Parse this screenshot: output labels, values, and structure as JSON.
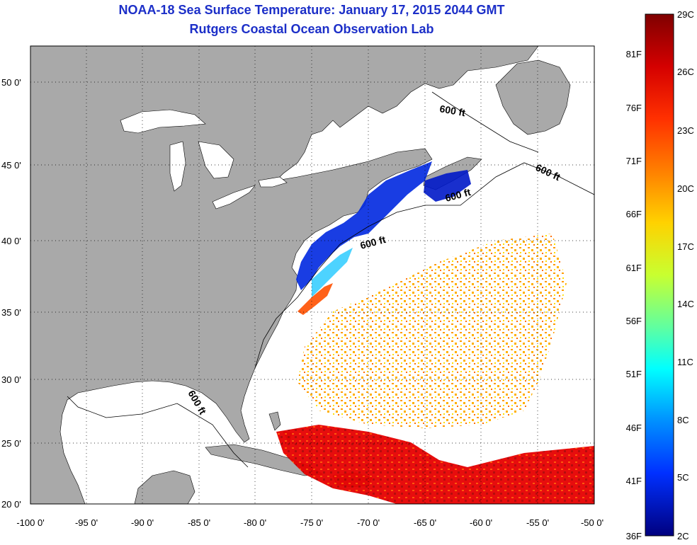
{
  "title": "NOAA-18 Sea Surface Temperature:  January 17, 2015 2044 GMT",
  "subtitle": "Rutgers Coastal Ocean Observation Lab",
  "lat_labels": [
    "50 0'",
    "45 0'",
    "40 0'",
    "35 0'",
    "30 0'",
    "25 0'",
    "20 0'"
  ],
  "lon_labels": [
    "-100 0'",
    "-95 0'",
    "-90 0'",
    "-85 0'",
    "-80 0'",
    "-75 0'",
    "-70 0'",
    "-65 0'",
    "-60 0'",
    "-55 0'",
    "-50 0'"
  ],
  "contour_label": "600 ft",
  "colorbar": {
    "fahrenheit": [
      "81F",
      "76F",
      "71F",
      "66F",
      "61F",
      "56F",
      "51F",
      "46F",
      "41F",
      "36F"
    ],
    "celsius": [
      "29C",
      "26C",
      "23C",
      "20C",
      "17C",
      "14C",
      "11C",
      "8C",
      "5C",
      "2C"
    ],
    "colors": [
      "#7f0000",
      "#d40000",
      "#ff3000",
      "#ff7f00",
      "#ffc800",
      "#e6ff00",
      "#9cff50",
      "#40ffbf",
      "#00e0ff",
      "#0090ff",
      "#0040ff",
      "#0000d0",
      "#00007f"
    ]
  },
  "colors": {
    "land": "#a9a9a9",
    "ocean": "#ffffff",
    "title": "#1c2fc8"
  }
}
